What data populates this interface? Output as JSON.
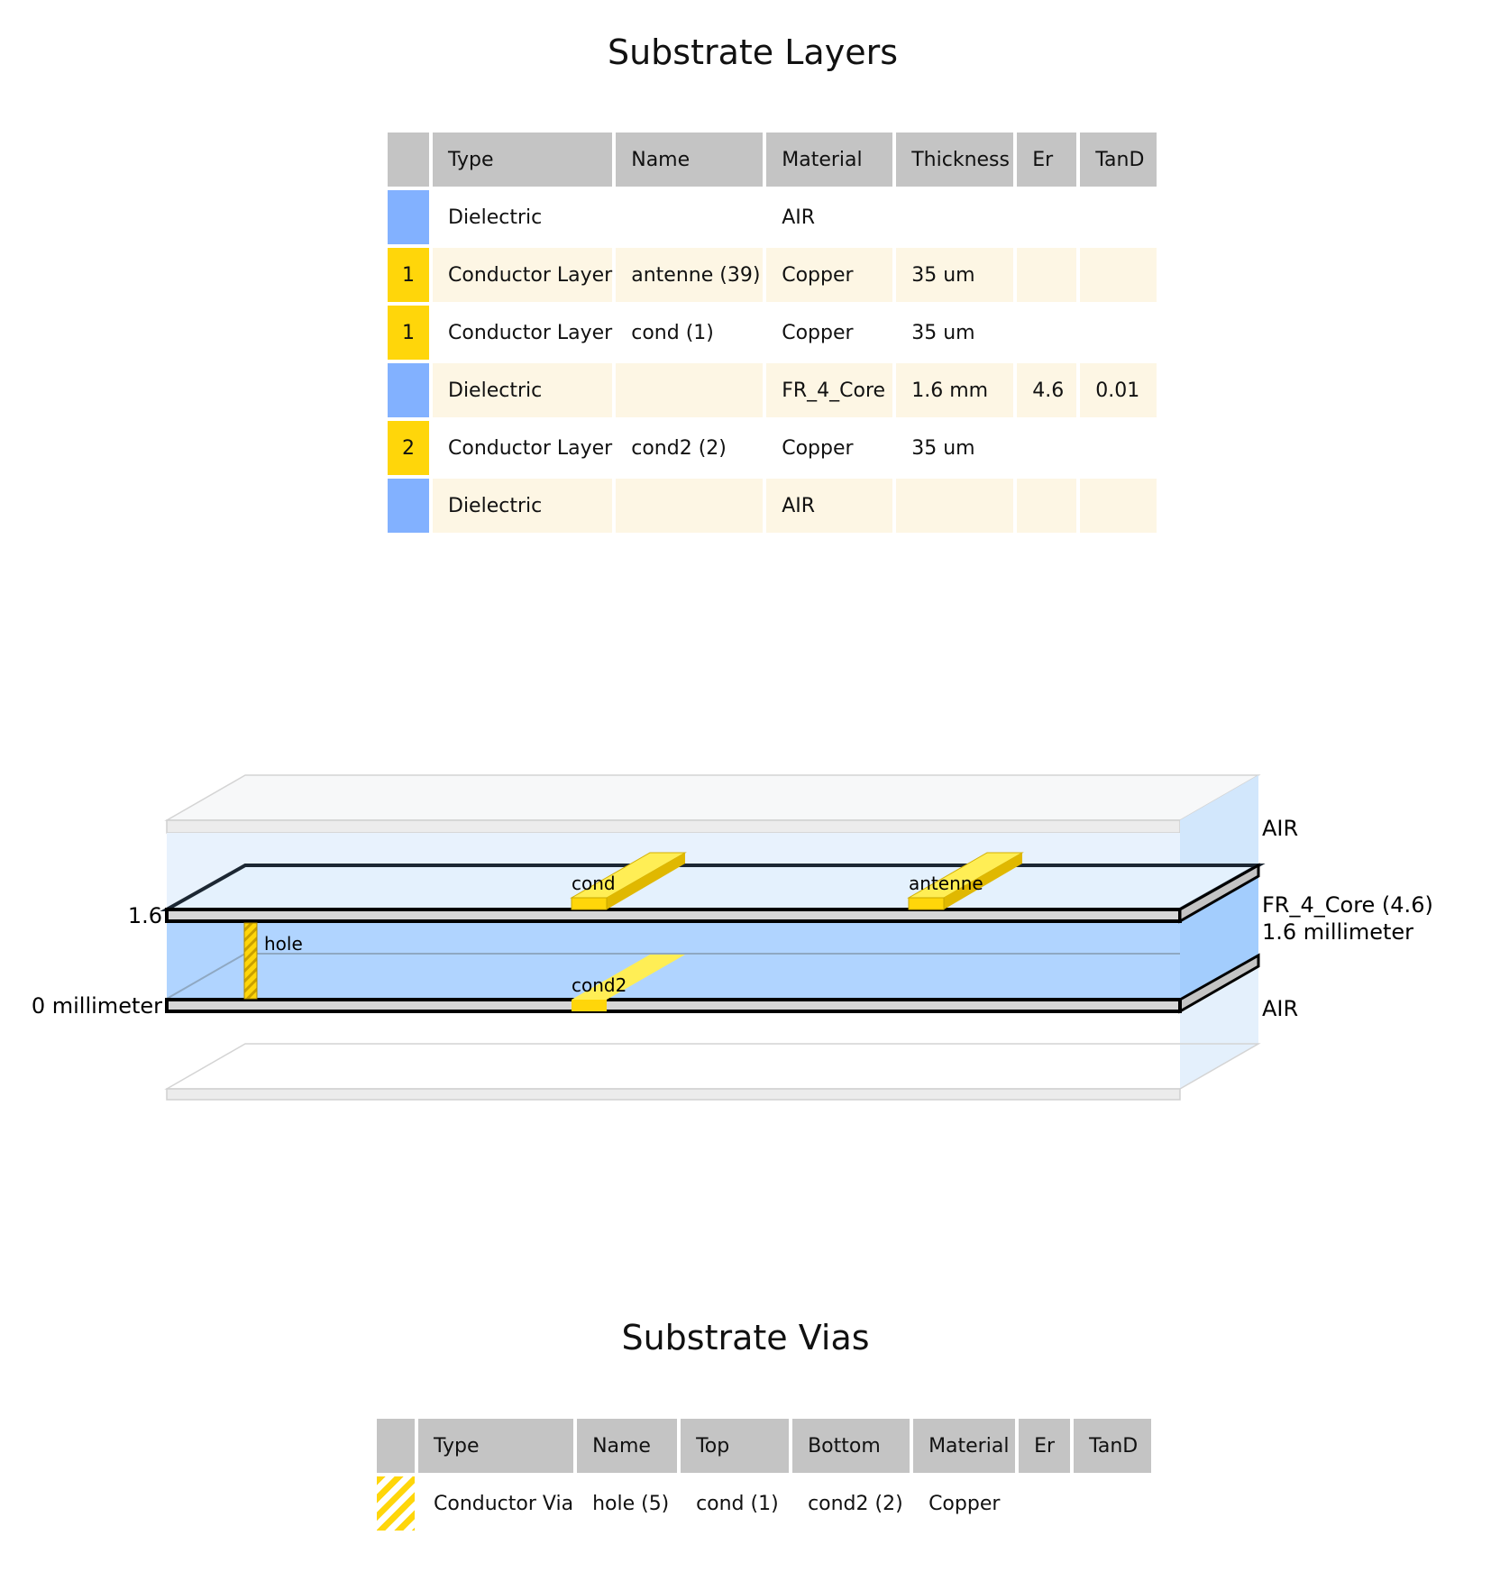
{
  "layers": {
    "title": "Substrate Layers",
    "headers": [
      "Type",
      "Name",
      "Material",
      "Thickness",
      "Er",
      "TanD"
    ],
    "rows": [
      {
        "num": "",
        "kind": "dielectric",
        "type": "Dielectric",
        "name": "",
        "material": "AIR",
        "thickness": "",
        "er": "",
        "tand": ""
      },
      {
        "num": "1",
        "kind": "conductor",
        "type": "Conductor Layer",
        "name": "antenne (39)",
        "material": "Copper",
        "thickness": "35 um",
        "er": "",
        "tand": ""
      },
      {
        "num": "1",
        "kind": "conductor",
        "type": "Conductor Layer",
        "name": "cond (1)",
        "material": "Copper",
        "thickness": "35 um",
        "er": "",
        "tand": ""
      },
      {
        "num": "",
        "kind": "dielectric",
        "type": "Dielectric",
        "name": "",
        "material": "FR_4_Core",
        "thickness": "1.6 mm",
        "er": "4.6",
        "tand": "0.01"
      },
      {
        "num": "2",
        "kind": "conductor",
        "type": "Conductor Layer",
        "name": "cond2 (2)",
        "material": "Copper",
        "thickness": "35 um",
        "er": "",
        "tand": ""
      },
      {
        "num": "",
        "kind": "dielectric",
        "type": "Dielectric",
        "name": "",
        "material": "AIR",
        "thickness": "",
        "er": "",
        "tand": ""
      }
    ]
  },
  "diagram": {
    "left_labels": {
      "top": "1.6",
      "bottom": "0 millimeter"
    },
    "right_labels": {
      "air_top": "AIR",
      "core_material": "FR_4_Core (4.6)",
      "core_thickness": "1.6 millimeter",
      "air_bottom": "AIR"
    },
    "traces": {
      "cond": "cond",
      "antenne": "antenne",
      "cond2": "cond2"
    },
    "via": "hole",
    "colors": {
      "conductor": "#ffd60a",
      "dielectric": "#82b1ff",
      "core_fill": "#b0d4ff",
      "header": "#c4c4c4",
      "row_alt": "#fdf6e4"
    }
  },
  "vias": {
    "title": "Substrate Vias",
    "headers": [
      "Type",
      "Name",
      "Top",
      "Bottom",
      "Material",
      "Er",
      "TanD"
    ],
    "rows": [
      {
        "type": "Conductor Via",
        "name": "hole (5)",
        "top": "cond (1)",
        "bottom": "cond2 (2)",
        "material": "Copper",
        "er": "",
        "tand": ""
      }
    ]
  }
}
